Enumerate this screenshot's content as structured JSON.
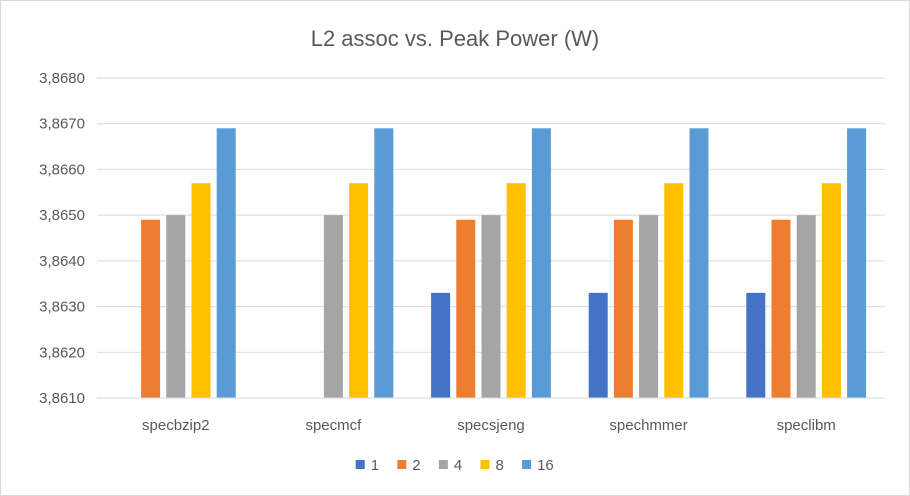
{
  "chart_data": {
    "type": "bar",
    "title": "L2 assoc vs. Peak Power (W)",
    "xlabel": "",
    "ylabel": "",
    "ylim": [
      3.861,
      3.868
    ],
    "yticks": [
      "3,8610",
      "3,8620",
      "3,8630",
      "3,8640",
      "3,8650",
      "3,8660",
      "3,8670",
      "3,8680"
    ],
    "categories": [
      "specbzip2",
      "specmcf",
      "specsjeng",
      "spechmmer",
      "speclibm"
    ],
    "series": [
      {
        "name": "1",
        "color": "#4472c4",
        "values": [
          null,
          null,
          3.8633,
          3.8633,
          3.8633
        ]
      },
      {
        "name": "2",
        "color": "#ed7d31",
        "values": [
          3.8649,
          null,
          3.8649,
          3.8649,
          3.8649
        ]
      },
      {
        "name": "4",
        "color": "#a5a5a5",
        "values": [
          3.865,
          3.865,
          3.865,
          3.865,
          3.865
        ]
      },
      {
        "name": "8",
        "color": "#ffc000",
        "values": [
          3.8657,
          3.8657,
          3.8657,
          3.8657,
          3.8657
        ]
      },
      {
        "name": "16",
        "color": "#5b9bd5",
        "values": [
          3.8669,
          3.8669,
          3.8669,
          3.8669,
          3.8669
        ]
      }
    ],
    "grid": true,
    "legend": "bottom"
  }
}
